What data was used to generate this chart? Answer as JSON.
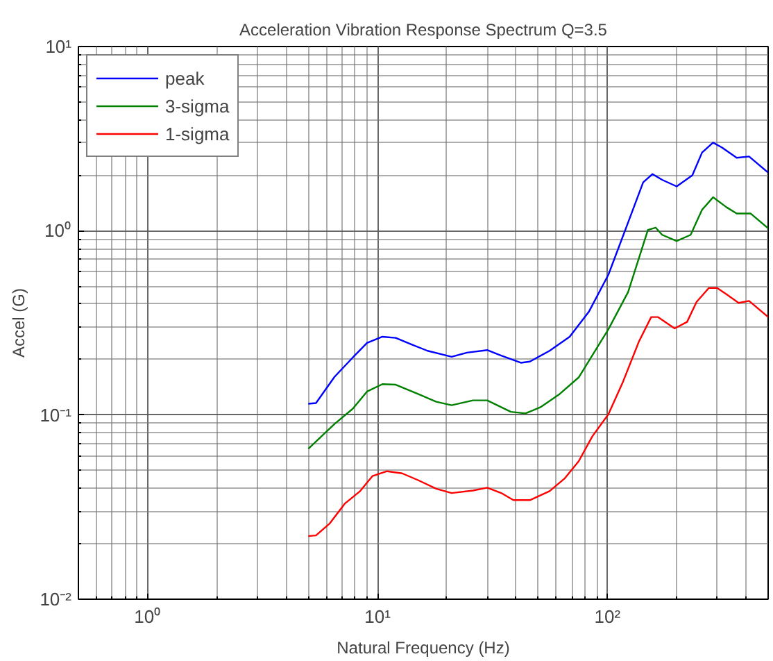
{
  "chart_data": {
    "type": "line",
    "title": "Acceleration Vibration Response Spectrum Q=3.5",
    "xlabel": "Natural Frequency (Hz)",
    "ylabel": "Accel (G)",
    "log": "xy",
    "grid": true,
    "legend": "top left",
    "marker": "none",
    "line_style": "solid",
    "xlim": [
      0.5,
      500
    ],
    "ylim": [
      0.01,
      10
    ],
    "xticks": [
      {
        "value": 1,
        "label": "10⁰"
      },
      {
        "value": 10,
        "label": "10¹"
      },
      {
        "value": 100,
        "label": "10²"
      }
    ],
    "yticks": [
      {
        "value": 0.01,
        "label": "10⁻²"
      },
      {
        "value": 0.1,
        "label": "10⁻¹"
      },
      {
        "value": 1,
        "label": "10⁰"
      },
      {
        "value": 10,
        "label": "10¹"
      }
    ],
    "series": [
      {
        "name": "peak",
        "color": "#0000ff",
        "x": [
          5,
          5.4,
          6.5,
          7.8,
          9,
          10.5,
          12,
          14,
          16.5,
          21,
          24.5,
          30,
          34.5,
          42,
          46,
          56,
          68.5,
          83,
          101,
          123,
          143,
          157,
          173,
          200,
          234,
          258,
          288,
          315,
          365,
          413,
          500
        ],
        "values": [
          0.115,
          0.116,
          0.161,
          0.205,
          0.246,
          0.266,
          0.262,
          0.242,
          0.223,
          0.207,
          0.218,
          0.225,
          0.21,
          0.192,
          0.195,
          0.223,
          0.266,
          0.363,
          0.578,
          1.11,
          1.83,
          2.03,
          1.89,
          1.74,
          2.0,
          2.66,
          3.01,
          2.83,
          2.49,
          2.53,
          2.07
        ]
      },
      {
        "name": "3-sigma",
        "color": "#008000",
        "x": [
          5,
          6.5,
          7.8,
          9,
          10.5,
          12,
          15,
          18,
          21,
          26,
          30,
          38,
          44,
          51,
          62,
          75,
          101,
          123,
          150,
          162,
          173,
          200,
          230,
          258,
          288,
          330,
          365,
          420,
          500
        ],
        "values": [
          0.0655,
          0.0894,
          0.108,
          0.134,
          0.147,
          0.146,
          0.13,
          0.118,
          0.113,
          0.12,
          0.12,
          0.104,
          0.102,
          0.11,
          0.13,
          0.16,
          0.292,
          0.465,
          1.01,
          1.04,
          0.95,
          0.88,
          0.95,
          1.3,
          1.52,
          1.34,
          1.24,
          1.24,
          1.03
        ]
      },
      {
        "name": "1-sigma",
        "color": "#ff0000",
        "x": [
          5,
          5.4,
          6.2,
          7.2,
          8.4,
          9.5,
          11,
          12.8,
          15,
          18,
          21,
          26,
          30,
          34.5,
          39,
          46,
          56,
          65,
          75,
          86,
          101,
          117,
          137,
          155,
          166,
          196,
          222,
          244,
          276,
          300,
          330,
          372,
          413,
          500
        ],
        "values": [
          0.022,
          0.0222,
          0.0258,
          0.033,
          0.0386,
          0.0466,
          0.0495,
          0.0482,
          0.0443,
          0.0398,
          0.0377,
          0.0389,
          0.0403,
          0.0377,
          0.0345,
          0.0345,
          0.0386,
          0.0451,
          0.0561,
          0.0766,
          0.101,
          0.152,
          0.25,
          0.34,
          0.34,
          0.295,
          0.32,
          0.41,
          0.489,
          0.489,
          0.451,
          0.406,
          0.416,
          0.34
        ]
      }
    ]
  }
}
